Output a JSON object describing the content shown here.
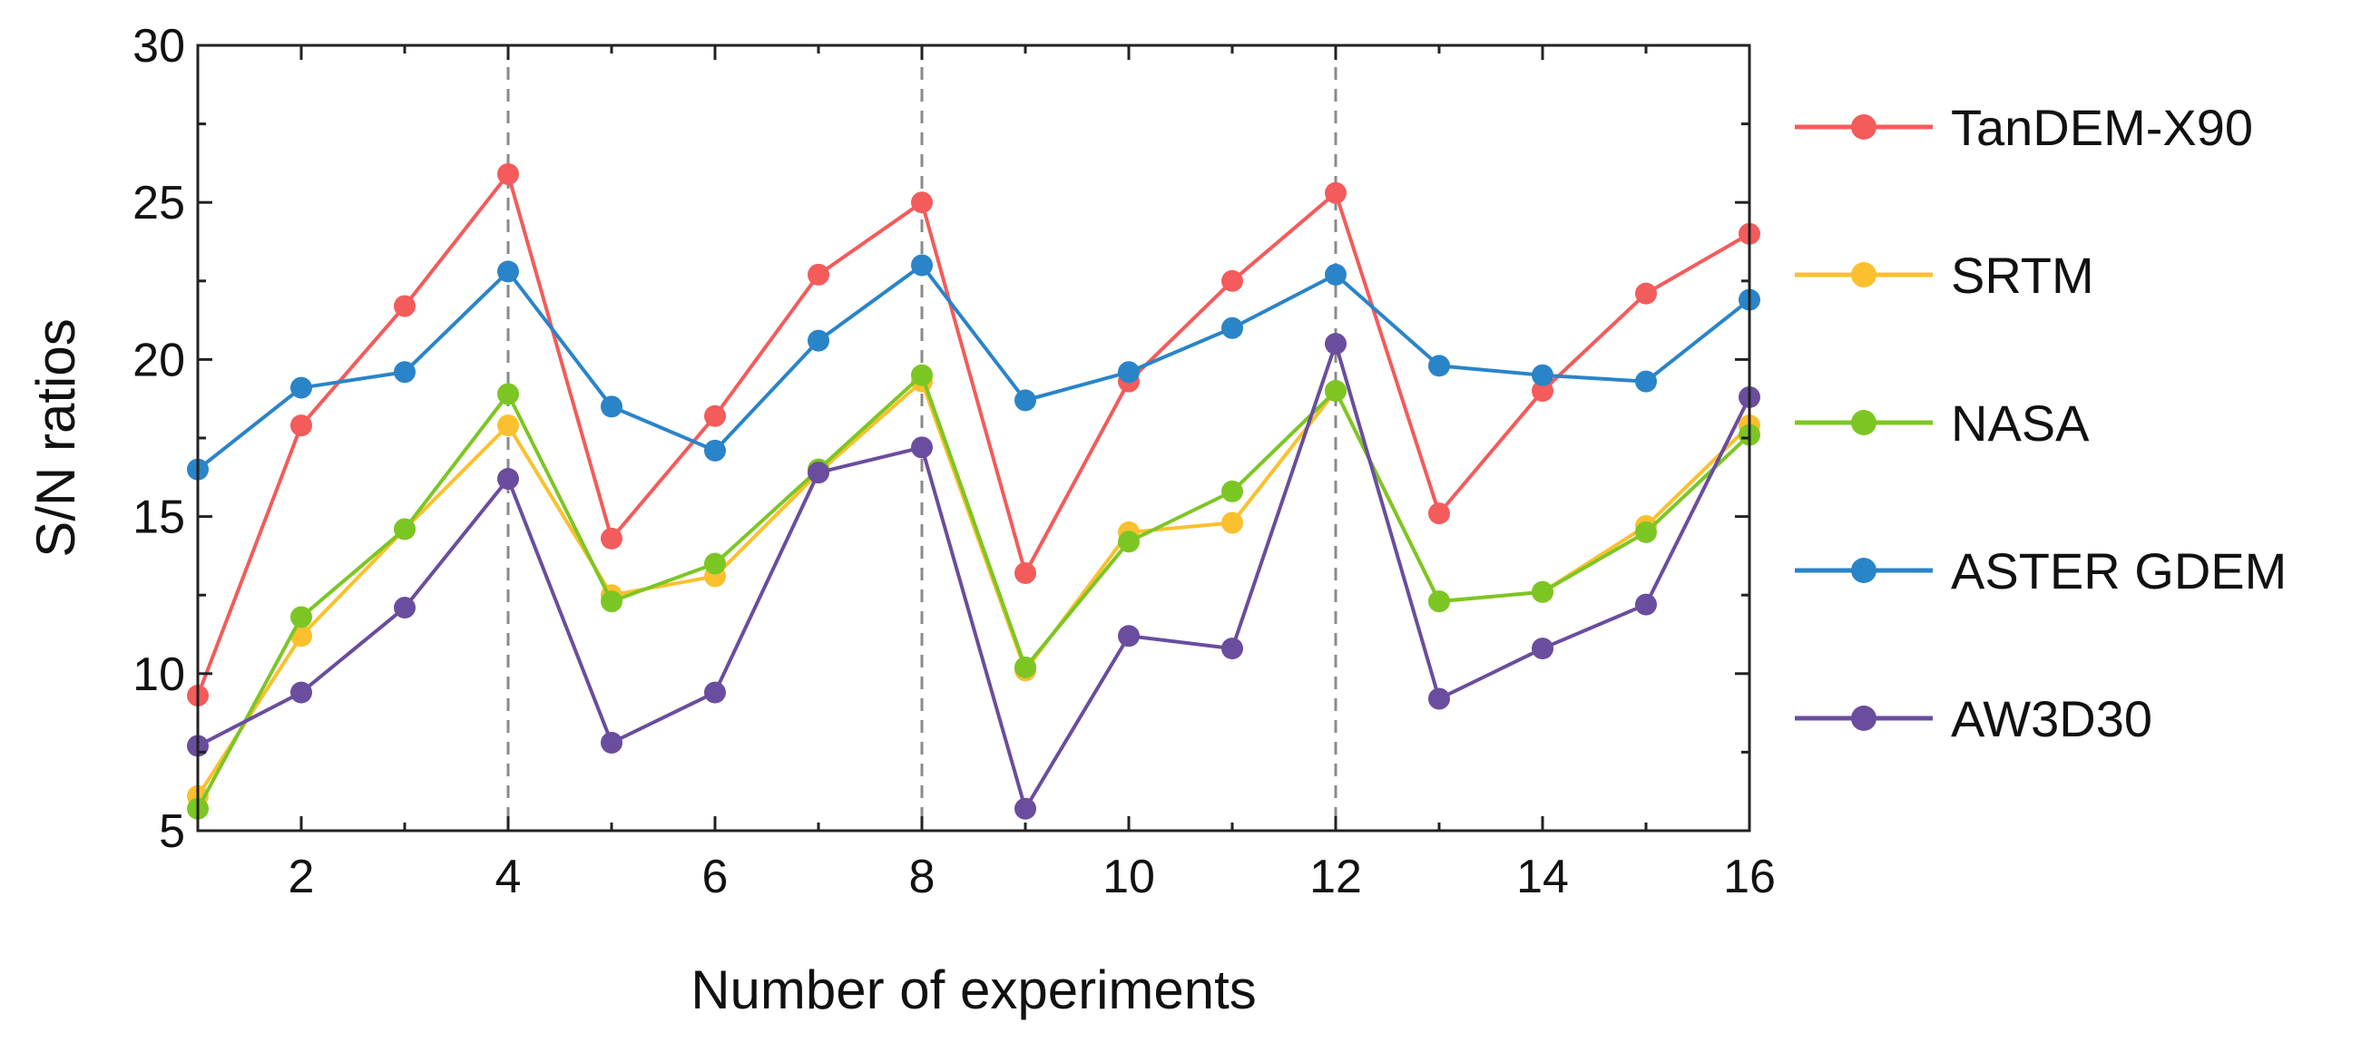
{
  "chart_data": {
    "type": "line",
    "title": "",
    "xlabel": "Number of experiments",
    "ylabel": "S/N ratios",
    "xlim": [
      1,
      16
    ],
    "ylim": [
      5,
      30
    ],
    "xticks": [
      2,
      4,
      6,
      8,
      10,
      12,
      14,
      16
    ],
    "xtick_labels": [
      "2",
      "4",
      "6",
      "8",
      "10",
      "12",
      "14",
      "16"
    ],
    "yticks": [
      5,
      10,
      15,
      20,
      25,
      30
    ],
    "ytick_labels": [
      "5",
      "10",
      "15",
      "20",
      "25",
      "30"
    ],
    "reference_lines_x": [
      4,
      8,
      12
    ],
    "grid": false,
    "legend_position": "right",
    "x": [
      1,
      2,
      3,
      4,
      5,
      6,
      7,
      8,
      9,
      10,
      11,
      12,
      13,
      14,
      15,
      16
    ],
    "series": [
      {
        "name": "TanDEM-X90",
        "color": "#f45b5b",
        "values": [
          9.3,
          17.9,
          21.7,
          25.9,
          14.3,
          18.2,
          22.7,
          25.0,
          13.2,
          19.3,
          22.5,
          25.3,
          15.1,
          19.0,
          22.1,
          24.0
        ]
      },
      {
        "name": "SRTM",
        "color": "#fbc02d",
        "values": [
          6.1,
          11.2,
          14.6,
          17.9,
          12.5,
          13.1,
          16.4,
          19.3,
          10.1,
          14.5,
          14.8,
          19.0,
          12.3,
          12.6,
          14.7,
          17.9
        ]
      },
      {
        "name": "NASA",
        "color": "#7cc624",
        "values": [
          5.7,
          11.8,
          14.6,
          18.9,
          12.3,
          13.5,
          16.5,
          19.5,
          10.2,
          14.2,
          15.8,
          19.0,
          12.3,
          12.6,
          14.5,
          17.6
        ]
      },
      {
        "name": "ASTER GDEM",
        "color": "#2a84c8",
        "values": [
          16.5,
          19.1,
          19.6,
          22.8,
          18.5,
          17.1,
          20.6,
          23.0,
          18.7,
          19.6,
          21.0,
          22.7,
          19.8,
          19.5,
          19.3,
          21.9
        ]
      },
      {
        "name": "AW3D30",
        "color": "#6a4d9e",
        "values": [
          7.7,
          9.4,
          12.1,
          16.2,
          7.8,
          9.4,
          16.4,
          17.2,
          5.7,
          11.2,
          10.8,
          20.5,
          9.2,
          10.8,
          12.2,
          18.8
        ]
      }
    ]
  }
}
